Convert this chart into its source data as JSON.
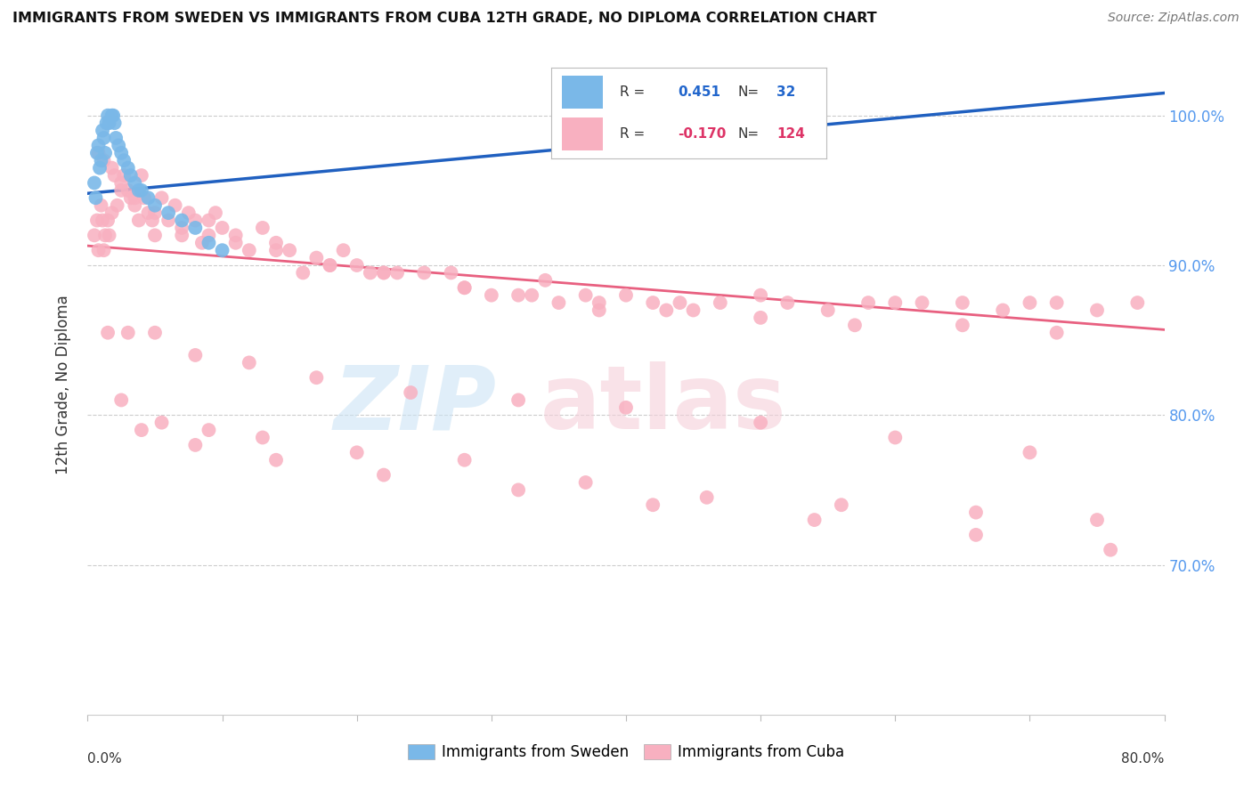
{
  "title": "IMMIGRANTS FROM SWEDEN VS IMMIGRANTS FROM CUBA 12TH GRADE, NO DIPLOMA CORRELATION CHART",
  "source": "Source: ZipAtlas.com",
  "ylabel": "12th Grade, No Diploma",
  "yticks": [
    "100.0%",
    "90.0%",
    "80.0%",
    "70.0%"
  ],
  "ytick_vals": [
    1.0,
    0.9,
    0.8,
    0.7
  ],
  "xmin": 0.0,
  "xmax": 0.8,
  "ymin": 0.6,
  "ymax": 1.04,
  "legend_sweden_R": "0.451",
  "legend_sweden_N": "32",
  "legend_cuba_R": "-0.170",
  "legend_cuba_N": "124",
  "sweden_color": "#7ab8e8",
  "cuba_color": "#f8b0c0",
  "sweden_line_color": "#2060c0",
  "cuba_line_color": "#e86080",
  "sweden_line_y0": 0.948,
  "sweden_line_y1": 1.015,
  "cuba_line_y0": 0.913,
  "cuba_line_y1": 0.857,
  "sweden_x": [
    0.005,
    0.007,
    0.008,
    0.009,
    0.01,
    0.011,
    0.012,
    0.013,
    0.014,
    0.015,
    0.016,
    0.018,
    0.019,
    0.02,
    0.021,
    0.023,
    0.025,
    0.027,
    0.03,
    0.032,
    0.035,
    0.038,
    0.04,
    0.045,
    0.05,
    0.06,
    0.07,
    0.08,
    0.09,
    0.1,
    0.35,
    0.006
  ],
  "sweden_y": [
    0.955,
    0.975,
    0.98,
    0.965,
    0.97,
    0.99,
    0.985,
    0.975,
    0.995,
    1.0,
    0.995,
    1.0,
    1.0,
    0.995,
    0.985,
    0.98,
    0.975,
    0.97,
    0.965,
    0.96,
    0.955,
    0.95,
    0.95,
    0.945,
    0.94,
    0.935,
    0.93,
    0.925,
    0.915,
    0.91,
    1.01,
    0.945
  ],
  "cuba_x": [
    0.005,
    0.007,
    0.008,
    0.01,
    0.011,
    0.012,
    0.013,
    0.015,
    0.016,
    0.018,
    0.02,
    0.022,
    0.025,
    0.027,
    0.03,
    0.032,
    0.035,
    0.038,
    0.04,
    0.042,
    0.045,
    0.048,
    0.05,
    0.055,
    0.06,
    0.065,
    0.07,
    0.075,
    0.08,
    0.085,
    0.09,
    0.095,
    0.1,
    0.11,
    0.12,
    0.13,
    0.14,
    0.15,
    0.16,
    0.17,
    0.18,
    0.19,
    0.2,
    0.21,
    0.22,
    0.23,
    0.25,
    0.27,
    0.28,
    0.3,
    0.32,
    0.34,
    0.35,
    0.37,
    0.38,
    0.4,
    0.42,
    0.44,
    0.45,
    0.47,
    0.5,
    0.52,
    0.55,
    0.58,
    0.6,
    0.62,
    0.65,
    0.68,
    0.7,
    0.72,
    0.75,
    0.78,
    0.008,
    0.012,
    0.018,
    0.025,
    0.035,
    0.05,
    0.07,
    0.09,
    0.11,
    0.14,
    0.18,
    0.22,
    0.28,
    0.33,
    0.38,
    0.43,
    0.5,
    0.57,
    0.65,
    0.72,
    0.015,
    0.03,
    0.05,
    0.08,
    0.12,
    0.17,
    0.24,
    0.32,
    0.4,
    0.5,
    0.6,
    0.7,
    0.025,
    0.055,
    0.09,
    0.13,
    0.2,
    0.28,
    0.37,
    0.46,
    0.56,
    0.66,
    0.75,
    0.04,
    0.08,
    0.14,
    0.22,
    0.32,
    0.42,
    0.54,
    0.66,
    0.76
  ],
  "cuba_y": [
    0.92,
    0.93,
    0.91,
    0.94,
    0.93,
    0.91,
    0.92,
    0.93,
    0.92,
    0.935,
    0.96,
    0.94,
    0.955,
    0.96,
    0.95,
    0.945,
    0.94,
    0.93,
    0.96,
    0.945,
    0.935,
    0.93,
    0.92,
    0.945,
    0.93,
    0.94,
    0.925,
    0.935,
    0.93,
    0.915,
    0.93,
    0.935,
    0.925,
    0.92,
    0.91,
    0.925,
    0.915,
    0.91,
    0.895,
    0.905,
    0.9,
    0.91,
    0.9,
    0.895,
    0.895,
    0.895,
    0.895,
    0.895,
    0.885,
    0.88,
    0.88,
    0.89,
    0.875,
    0.88,
    0.87,
    0.88,
    0.875,
    0.875,
    0.87,
    0.875,
    0.88,
    0.875,
    0.87,
    0.875,
    0.875,
    0.875,
    0.875,
    0.87,
    0.875,
    0.875,
    0.87,
    0.875,
    0.975,
    0.97,
    0.965,
    0.95,
    0.945,
    0.935,
    0.92,
    0.92,
    0.915,
    0.91,
    0.9,
    0.895,
    0.885,
    0.88,
    0.875,
    0.87,
    0.865,
    0.86,
    0.86,
    0.855,
    0.855,
    0.855,
    0.855,
    0.84,
    0.835,
    0.825,
    0.815,
    0.81,
    0.805,
    0.795,
    0.785,
    0.775,
    0.81,
    0.795,
    0.79,
    0.785,
    0.775,
    0.77,
    0.755,
    0.745,
    0.74,
    0.735,
    0.73,
    0.79,
    0.78,
    0.77,
    0.76,
    0.75,
    0.74,
    0.73,
    0.72,
    0.71
  ]
}
